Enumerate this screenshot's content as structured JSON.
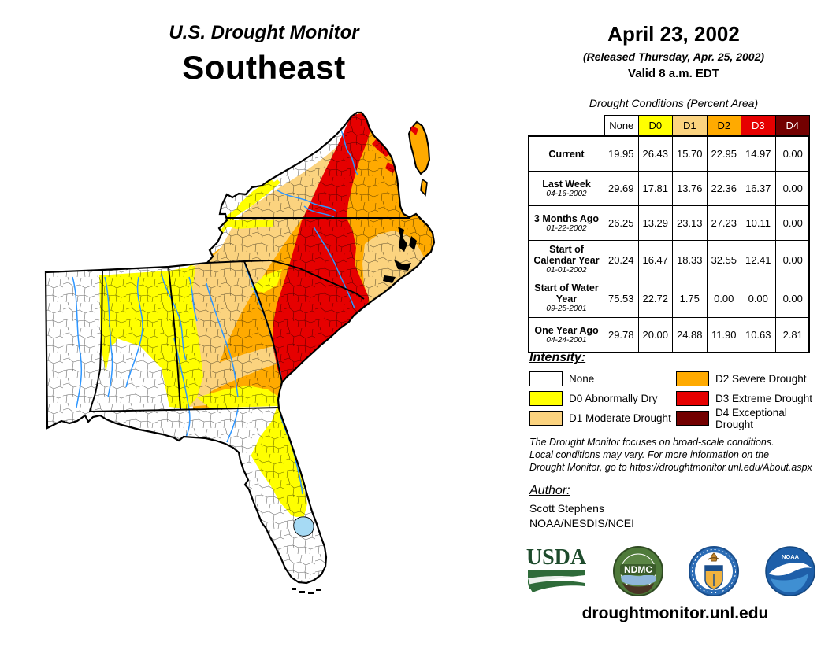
{
  "header": {
    "title_line1": "U.S. Drought Monitor",
    "title_line2": "Southeast",
    "date": "April 23, 2002",
    "released": "(Released Thursday, Apr. 25, 2002)",
    "valid": "Valid 8 a.m. EDT"
  },
  "table": {
    "title": "Drought Conditions (Percent Area)",
    "columns": [
      {
        "label": "None",
        "color": "#FFFFFF",
        "text": "#000000"
      },
      {
        "label": "D0",
        "color": "#FFFF00",
        "text": "#000000"
      },
      {
        "label": "D1",
        "color": "#FBD37F",
        "text": "#000000"
      },
      {
        "label": "D2",
        "color": "#FFAA00",
        "text": "#000000"
      },
      {
        "label": "D3",
        "color": "#E60000",
        "text": "#FFFFFF"
      },
      {
        "label": "D4",
        "color": "#730000",
        "text": "#FFFFFF"
      }
    ],
    "rows": [
      {
        "label": "Current",
        "date": "",
        "values": [
          "19.95",
          "26.43",
          "15.70",
          "22.95",
          "14.97",
          "0.00"
        ]
      },
      {
        "label": "Last Week",
        "date": "04-16-2002",
        "values": [
          "29.69",
          "17.81",
          "13.76",
          "22.36",
          "16.37",
          "0.00"
        ]
      },
      {
        "label": "3 Months Ago",
        "date": "01-22-2002",
        "values": [
          "26.25",
          "13.29",
          "23.13",
          "27.23",
          "10.11",
          "0.00"
        ]
      },
      {
        "label": "Start of Calendar Year",
        "date": "01-01-2002",
        "values": [
          "20.24",
          "16.47",
          "18.33",
          "32.55",
          "12.41",
          "0.00"
        ]
      },
      {
        "label": "Start of Water Year",
        "date": "09-25-2001",
        "values": [
          "75.53",
          "22.72",
          "1.75",
          "0.00",
          "0.00",
          "0.00"
        ]
      },
      {
        "label": "One Year Ago",
        "date": "04-24-2001",
        "values": [
          "29.78",
          "20.00",
          "24.88",
          "11.90",
          "10.63",
          "2.81"
        ]
      }
    ]
  },
  "legend": {
    "title": "Intensity:",
    "items": [
      {
        "label": "None",
        "color": "#FFFFFF"
      },
      {
        "label": "D0 Abnormally Dry",
        "color": "#FFFF00"
      },
      {
        "label": "D1 Moderate Drought",
        "color": "#FBD37F"
      },
      {
        "label": "D2 Severe Drought",
        "color": "#FFAA00"
      },
      {
        "label": "D3 Extreme Drought",
        "color": "#E60000"
      },
      {
        "label": "D4 Exceptional Drought",
        "color": "#730000"
      }
    ]
  },
  "disclaimer": {
    "line1": "The Drought Monitor focuses on broad-scale conditions.",
    "line2": "Local conditions may vary. For more information on the",
    "line3": "Drought Monitor, go to https://droughtmonitor.unl.edu/About.aspx"
  },
  "author": {
    "title": "Author:",
    "name": "Scott Stephens",
    "org": "NOAA/NESDIS/NCEI"
  },
  "logos": {
    "usda_text": "USDA",
    "ndmc_text": "NDMC",
    "noaa_text": "NOAA"
  },
  "footer": {
    "url": "droughtmonitor.unl.edu"
  },
  "map": {
    "region": "Southeast states with county boundaries",
    "river_color": "#2E96FF",
    "lake_color": "#A6DAF4"
  }
}
